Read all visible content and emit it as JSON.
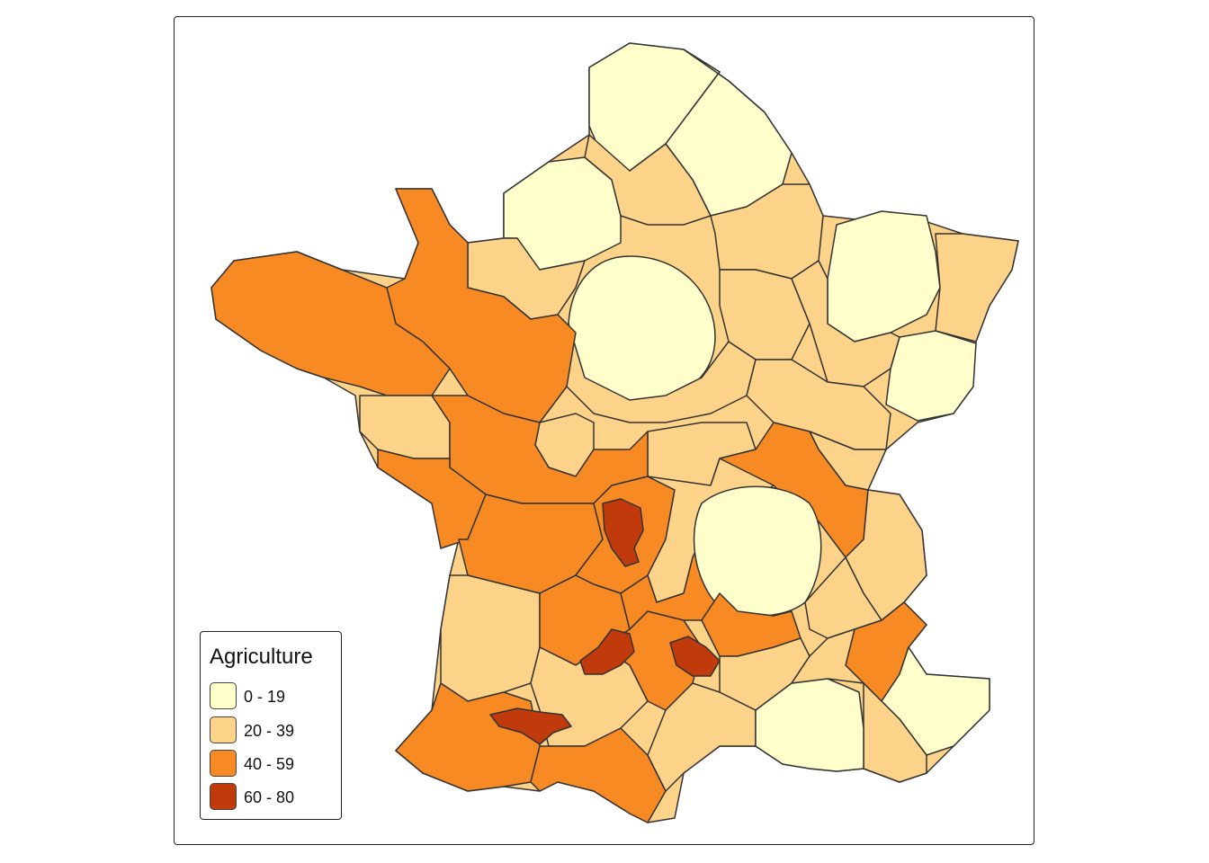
{
  "map": {
    "legend": {
      "title": "Agriculture",
      "classes": [
        {
          "label": "0 - 19",
          "color": "#FFFFCC"
        },
        {
          "label": "20 - 39",
          "color": "#FDD38A"
        },
        {
          "label": "40 - 59",
          "color": "#F88A24"
        },
        {
          "label": "60 - 80",
          "color": "#C13A0C"
        }
      ]
    },
    "border_color": "#333333"
  }
}
